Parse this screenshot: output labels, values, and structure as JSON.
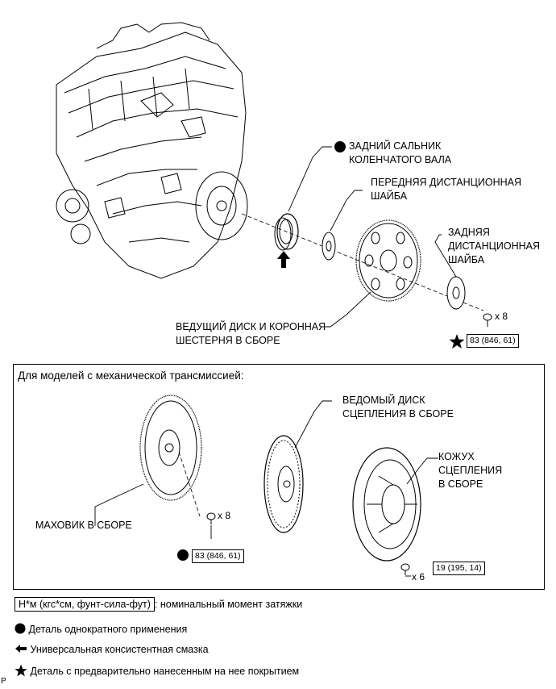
{
  "labels": {
    "rear_oil_seal": "ЗАДНИЙ САЛЬНИК\nКОЛЕНЧАТОГО ВАЛА",
    "front_spacer": "ПЕРЕДНЯЯ ДИСТАНЦИОННАЯ\nШАЙБА",
    "rear_spacer": "ЗАДНЯЯ\nДИСТАНЦИОННАЯ\nШАЙБА",
    "drive_plate": "ВЕДУЩИЙ ДИСК И КОРОННАЯ\nШЕСТЕРНЯ В СБОРЕ",
    "clutch_disc": "ВЕДОМЫЙ ДИСК\nСЦЕПЛЕНИЯ В СБОРЕ",
    "clutch_cover": "КОЖУХ\nСЦЕПЛЕНИЯ\nВ СБОРЕ",
    "flywheel": "МАХОВИК В СБОРЕ"
  },
  "quantities": {
    "drive_plate_bolts": "x 8",
    "flywheel_bolts": "x 8",
    "cover_bolts": "x 6"
  },
  "torques": {
    "drive_plate": "83 (846, 61)",
    "flywheel": "83 (846, 61)",
    "clutch_cover": "19 (195, 14)"
  },
  "panel": {
    "title": "Для моделей с механической трансмиссией:"
  },
  "legend": {
    "torque_box": "Н*м (кгс*см, фунт-сила-фут)",
    "torque_desc": ": номинальный момент затяжки",
    "non_reusable": "Деталь однократного применения",
    "grease": "Универсальная консистентная смазка",
    "precoated": "Деталь с предварительно нанесенным на нее покрытием"
  },
  "corner_mark": "P"
}
